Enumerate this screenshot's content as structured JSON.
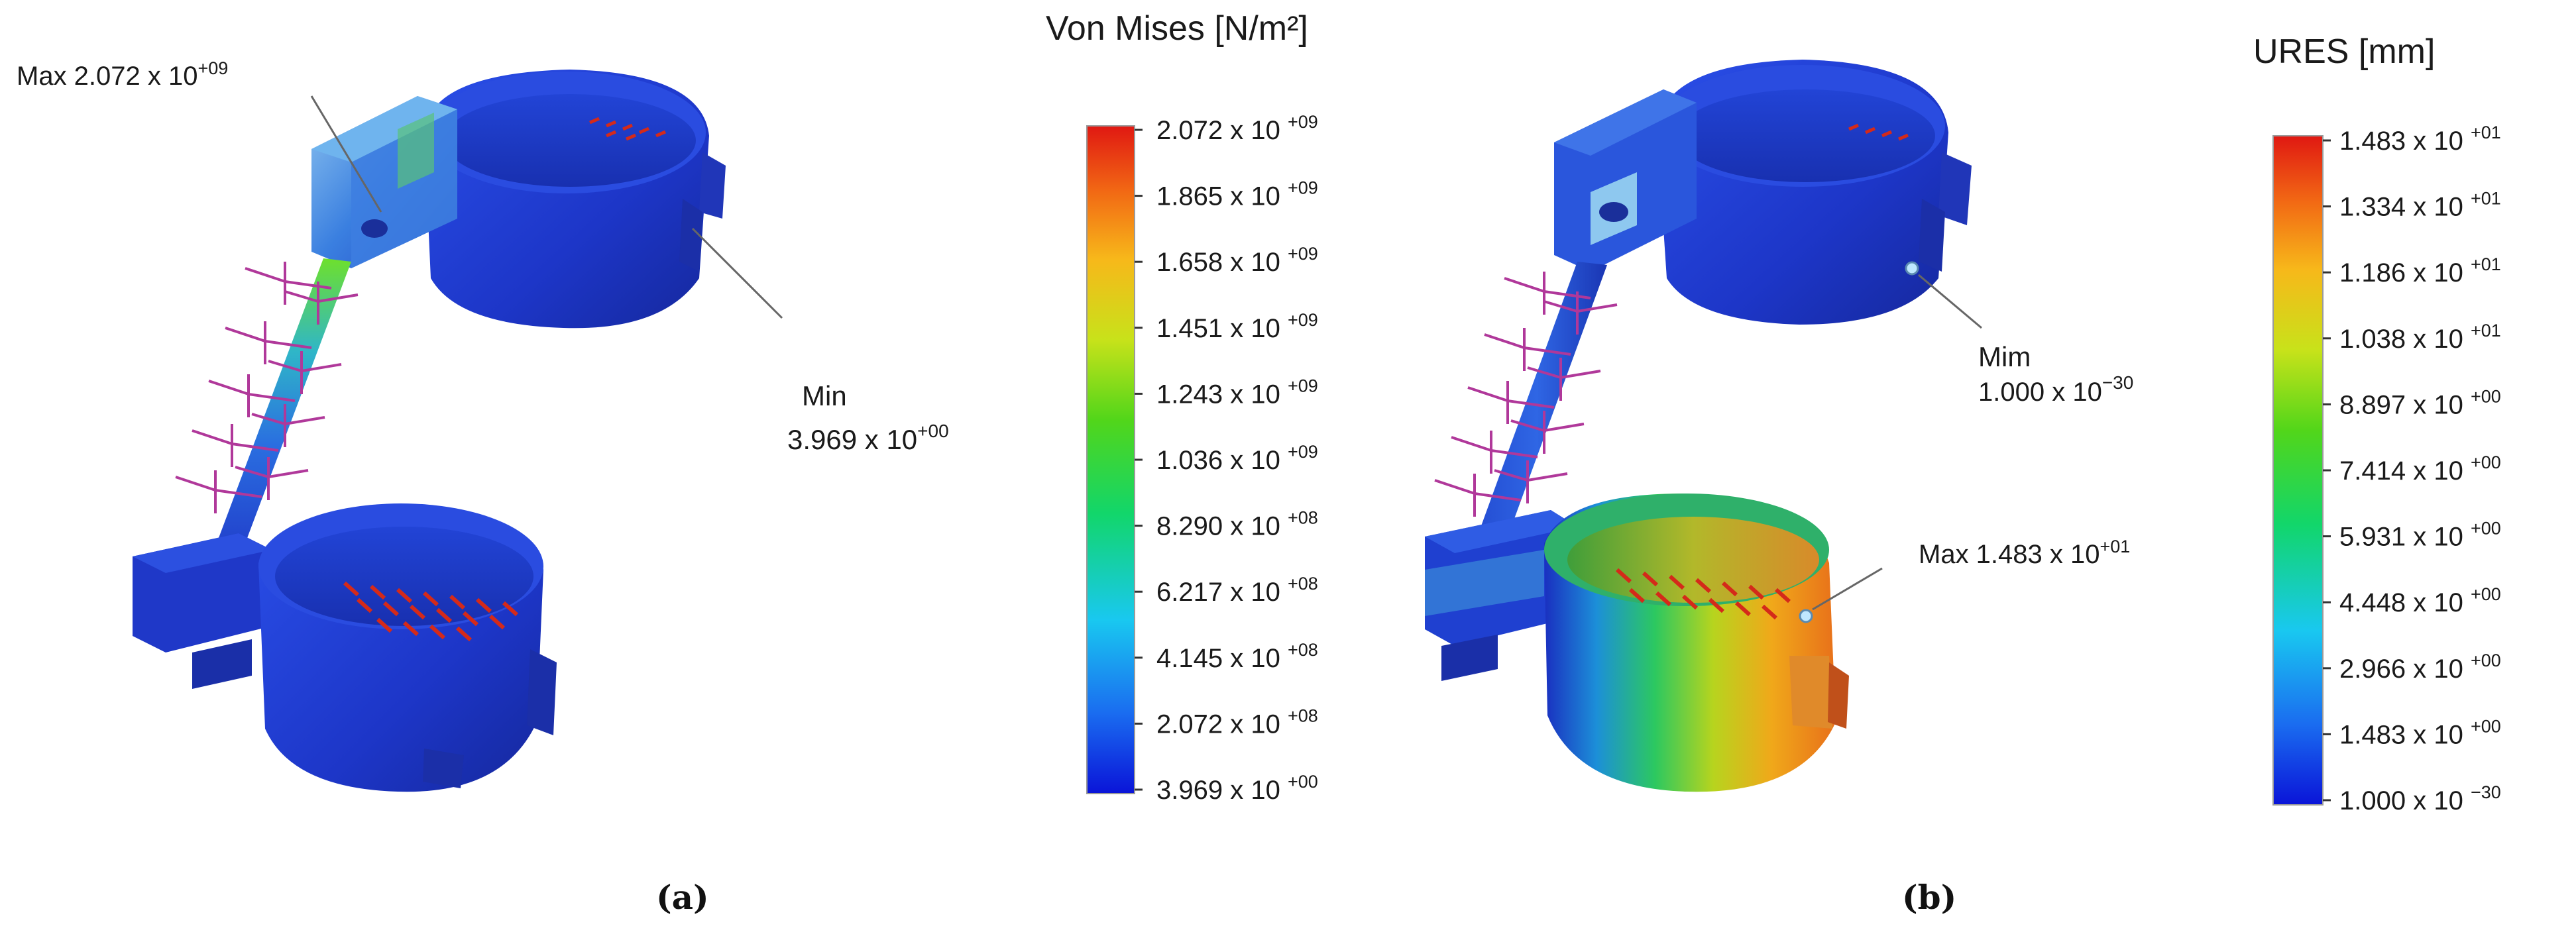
{
  "panel_a": {
    "caption": "(a)",
    "legend_title": "Von Mises [N/m²]",
    "max_label": "Max 2.072  x 10",
    "max_exp": "+09",
    "min_label": "Min",
    "min_value": "3.969 x 10",
    "min_exp": "+00",
    "ticks": [
      {
        "mant": "2.072 x 10",
        "exp": "+09"
      },
      {
        "mant": "1.865 x 10",
        "exp": "+09"
      },
      {
        "mant": "1.658 x 10",
        "exp": "+09"
      },
      {
        "mant": "1.451 x 10",
        "exp": "+09"
      },
      {
        "mant": "1.243 x 10",
        "exp": "+09"
      },
      {
        "mant": "1.036 x 10",
        "exp": "+09"
      },
      {
        "mant": "8.290 x 10",
        "exp": "+08"
      },
      {
        "mant": "6.217 x 10",
        "exp": "+08"
      },
      {
        "mant": "4.145 x 10",
        "exp": "+08"
      },
      {
        "mant": "2.072 x 10",
        "exp": "+08"
      },
      {
        "mant": "3.969 x 10",
        "exp": "+00"
      }
    ]
  },
  "panel_b": {
    "caption": "(b)",
    "legend_title": "URES [mm]",
    "min_label": "Mim",
    "min_value": "1.000 x 10",
    "min_exp": "−30",
    "max_label": "Max 1.483 x 10",
    "max_exp": "+01",
    "ticks": [
      {
        "mant": "1.483 x 10",
        "exp": "+01"
      },
      {
        "mant": "1.334 x 10",
        "exp": "+01"
      },
      {
        "mant": "1.186 x 10",
        "exp": "+01"
      },
      {
        "mant": "1.038 x 10",
        "exp": "+01"
      },
      {
        "mant": "8.897 x 10",
        "exp": "+00"
      },
      {
        "mant": "7.414 x 10",
        "exp": "+00"
      },
      {
        "mant": "5.931 x 10",
        "exp": "+00"
      },
      {
        "mant": "4.448 x 10",
        "exp": "+00"
      },
      {
        "mant": "2.966 x 10",
        "exp": "+00"
      },
      {
        "mant": "1.483 x 10",
        "exp": "+00"
      },
      {
        "mant": "1.000 x 10",
        "exp": "−30"
      }
    ]
  },
  "colors": {
    "model_blue": "#1f3fd0",
    "load_arrow": "#d42a1a",
    "fixture": "#b0389a"
  }
}
